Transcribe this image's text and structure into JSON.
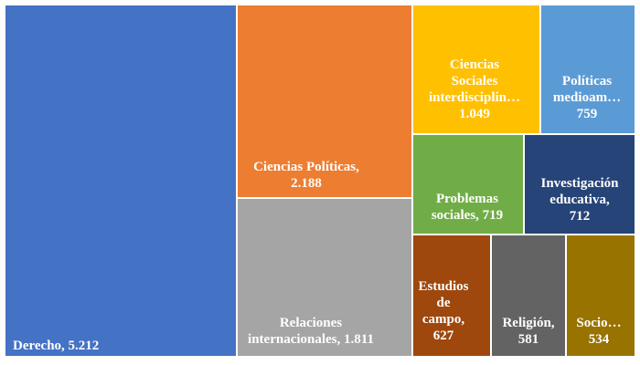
{
  "chart_data": {
    "type": "treemap",
    "title": "",
    "value_format": "thousands-dot",
    "items": [
      {
        "name": "Derecho",
        "value": 5212,
        "color": "#4472C4",
        "label_lines": [
          "Derecho, 5.212"
        ]
      },
      {
        "name": "Ciencias Políticas",
        "value": 2188,
        "color": "#ED7D31",
        "label_lines": [
          "Ciencias Políticas,",
          "2.188"
        ]
      },
      {
        "name": "Relaciones internacionales",
        "value": 1811,
        "color": "#A5A5A5",
        "label_lines": [
          "Relaciones",
          "internacionales, 1.811"
        ]
      },
      {
        "name": "Ciencias Sociales interdisciplinarias",
        "value": 1049,
        "color": "#FFC000",
        "label_lines": [
          "Ciencias",
          "Sociales",
          "interdisciplin…",
          "1.049"
        ]
      },
      {
        "name": "Políticas medioambientales",
        "value": 759,
        "color": "#5B9BD5",
        "label_lines": [
          "Políticas",
          "medioam…",
          "759"
        ]
      },
      {
        "name": "Problemas sociales",
        "value": 719,
        "color": "#70AD47",
        "label_lines": [
          "Problemas",
          "sociales, 719"
        ]
      },
      {
        "name": "Investigación educativa",
        "value": 712,
        "color": "#264478",
        "label_lines": [
          "Investigación",
          "educativa,",
          "712"
        ]
      },
      {
        "name": "Estudios de campo",
        "value": 627,
        "color": "#9E480E",
        "label_lines": [
          "Estudios",
          "de",
          "campo,",
          "627"
        ]
      },
      {
        "name": "Religión",
        "value": 581,
        "color": "#636363",
        "label_lines": [
          "Religión,",
          "581"
        ]
      },
      {
        "name": "Socio…",
        "value": 534,
        "color": "#997300",
        "label_lines": [
          "Socio…",
          "534"
        ]
      }
    ]
  }
}
